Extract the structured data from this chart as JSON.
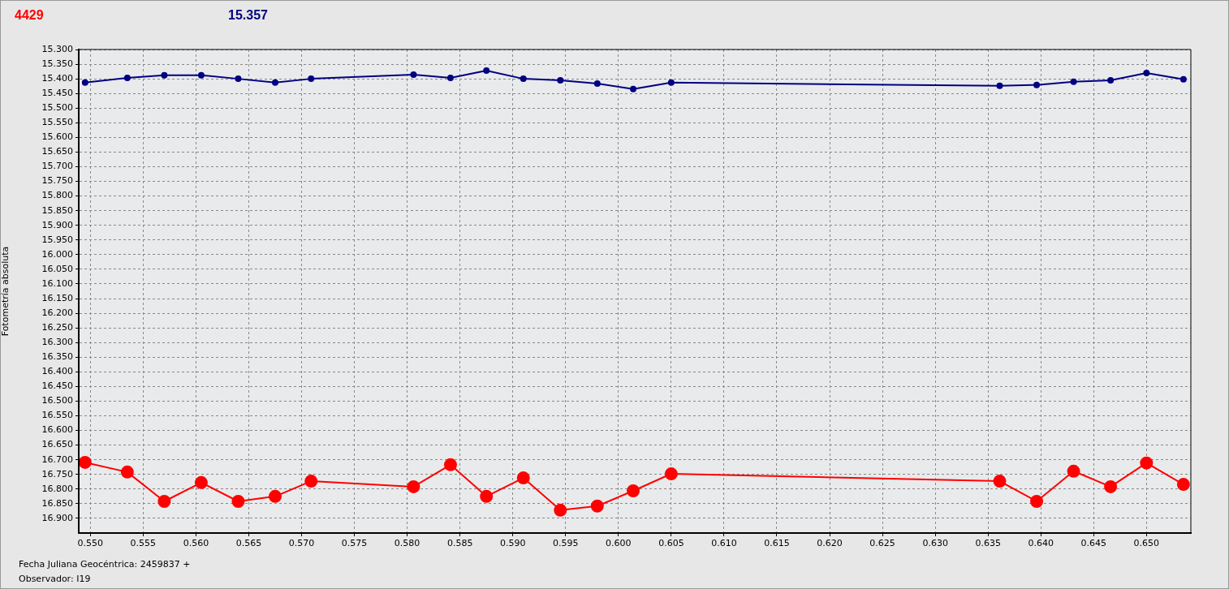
{
  "chart_data": {
    "type": "line",
    "ylabel": "Fotometría absoluta",
    "xlabel": "Fecha Juliana Geocéntrica: 2459837 +",
    "annotations": [
      "Observador: I19"
    ],
    "x": [
      0.5495,
      0.5535,
      0.557,
      0.5605,
      0.564,
      0.5675,
      0.5709,
      0.5806,
      0.5841,
      0.5875,
      0.591,
      0.5945,
      0.598,
      0.6014,
      0.605,
      0.6361,
      0.6396,
      0.6431,
      0.6466,
      0.65,
      0.6535
    ],
    "series": [
      {
        "name": "4429",
        "color": "#ff0000",
        "values": [
          16.709,
          16.742,
          16.842,
          16.778,
          16.842,
          16.825,
          16.773,
          16.792,
          16.717,
          16.825,
          16.762,
          16.872,
          16.858,
          16.806,
          16.748,
          16.773,
          16.842,
          16.739,
          16.792,
          16.711,
          16.784
        ]
      },
      {
        "name": "15.357",
        "color": "#000080",
        "values": [
          15.413,
          15.397,
          15.388,
          15.388,
          15.4,
          15.413,
          15.4,
          15.386,
          15.397,
          15.372,
          15.4,
          15.405,
          15.416,
          15.435,
          15.413,
          15.424,
          15.421,
          15.41,
          15.405,
          15.38,
          15.402
        ]
      }
    ],
    "xlim": [
      0.5489,
      0.6542
    ],
    "ylim": [
      16.95,
      15.3
    ],
    "xticks": [
      {
        "value": 0.55,
        "label": "0.550"
      },
      {
        "value": 0.555,
        "label": "0.555"
      },
      {
        "value": 0.56,
        "label": "0.560"
      },
      {
        "value": 0.565,
        "label": "0.565"
      },
      {
        "value": 0.57,
        "label": "0.570"
      },
      {
        "value": 0.575,
        "label": "0.575"
      },
      {
        "value": 0.58,
        "label": "0.580"
      },
      {
        "value": 0.585,
        "label": "0.585"
      },
      {
        "value": 0.59,
        "label": "0.590"
      },
      {
        "value": 0.595,
        "label": "0.595"
      },
      {
        "value": 0.6,
        "label": "0.600"
      },
      {
        "value": 0.605,
        "label": "0.605"
      },
      {
        "value": 0.61,
        "label": "0.610"
      },
      {
        "value": 0.615,
        "label": "0.615"
      },
      {
        "value": 0.62,
        "label": "0.620"
      },
      {
        "value": 0.625,
        "label": "0.625"
      },
      {
        "value": 0.63,
        "label": "0.630"
      },
      {
        "value": 0.635,
        "label": "0.635"
      },
      {
        "value": 0.64,
        "label": "0.640"
      },
      {
        "value": 0.645,
        "label": "0.645"
      },
      {
        "value": 0.65,
        "label": "0.650"
      }
    ],
    "yticks": [
      {
        "value": 15.3,
        "label": "15.300"
      },
      {
        "value": 15.35,
        "label": "15.350"
      },
      {
        "value": 15.4,
        "label": "15.400"
      },
      {
        "value": 15.45,
        "label": "15.450"
      },
      {
        "value": 15.5,
        "label": "15.500"
      },
      {
        "value": 15.55,
        "label": "15.550"
      },
      {
        "value": 15.6,
        "label": "15.600"
      },
      {
        "value": 15.65,
        "label": "15.650"
      },
      {
        "value": 15.7,
        "label": "15.700"
      },
      {
        "value": 15.75,
        "label": "15.750"
      },
      {
        "value": 15.8,
        "label": "15.800"
      },
      {
        "value": 15.85,
        "label": "15.850"
      },
      {
        "value": 15.9,
        "label": "15.900"
      },
      {
        "value": 15.95,
        "label": "15.950"
      },
      {
        "value": 16.0,
        "label": "16.000"
      },
      {
        "value": 16.05,
        "label": "16.050"
      },
      {
        "value": 16.1,
        "label": "16.100"
      },
      {
        "value": 16.15,
        "label": "16.150"
      },
      {
        "value": 16.2,
        "label": "16.200"
      },
      {
        "value": 16.25,
        "label": "16.250"
      },
      {
        "value": 16.3,
        "label": "16.300"
      },
      {
        "value": 16.35,
        "label": "16.350"
      },
      {
        "value": 16.4,
        "label": "16.400"
      },
      {
        "value": 16.45,
        "label": "16.450"
      },
      {
        "value": 16.5,
        "label": "16.500"
      },
      {
        "value": 16.55,
        "label": "16.550"
      },
      {
        "value": 16.6,
        "label": "16.600"
      },
      {
        "value": 16.65,
        "label": "16.650"
      },
      {
        "value": 16.7,
        "label": "16.700"
      },
      {
        "value": 16.75,
        "label": "16.750"
      },
      {
        "value": 16.8,
        "label": "16.800"
      },
      {
        "value": 16.85,
        "label": "16.850"
      },
      {
        "value": 16.9,
        "label": "16.900"
      }
    ],
    "grid": true,
    "legend": "top left",
    "marker": "circle",
    "line_style": "solid"
  }
}
